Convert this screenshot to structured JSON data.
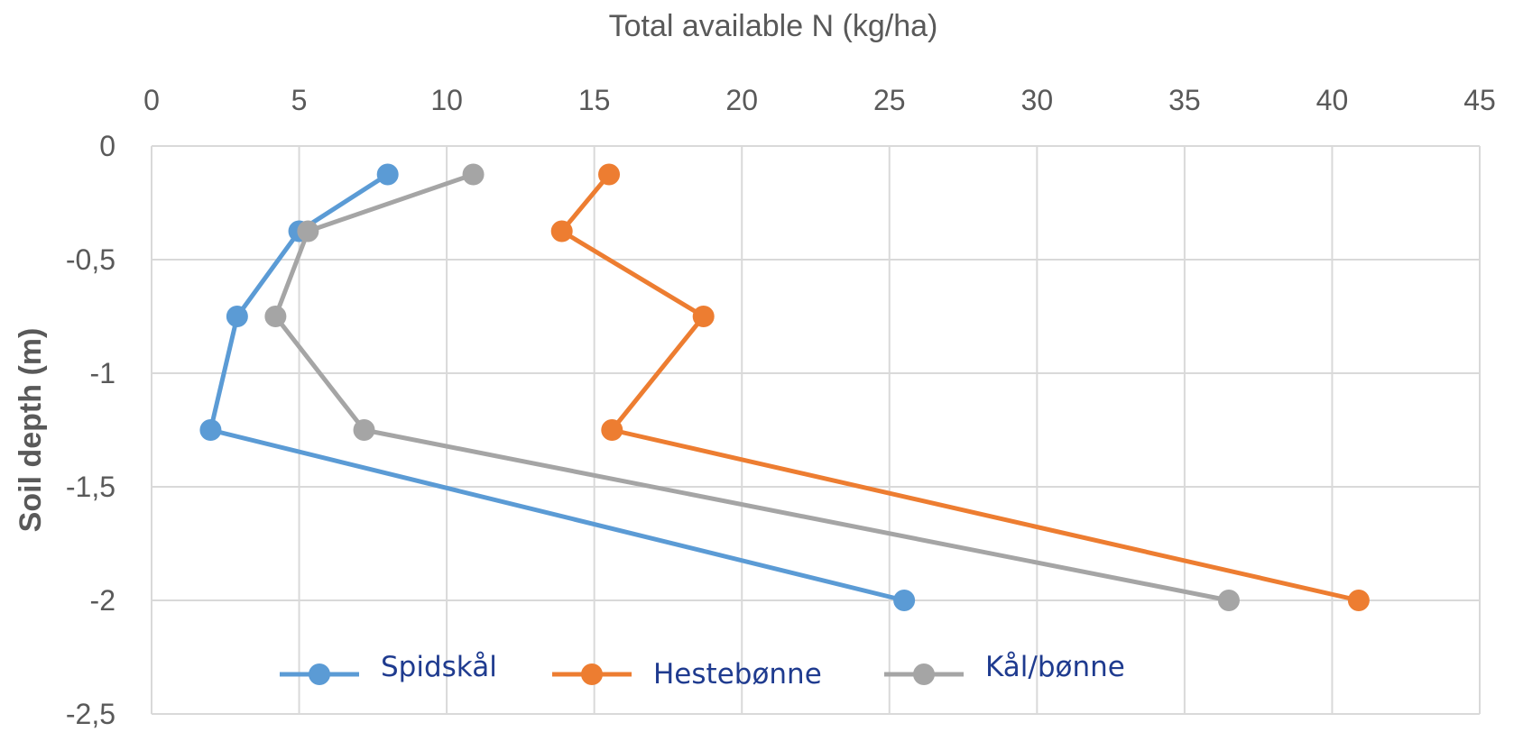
{
  "chart_data": {
    "type": "line",
    "title": "",
    "xlabel": "Total available N (kg/ha)",
    "ylabel": "Soil depth (m)",
    "xlim": [
      0,
      45
    ],
    "ylim": [
      -2.5,
      0
    ],
    "x_ticks": [
      0,
      5,
      10,
      15,
      20,
      25,
      30,
      35,
      40,
      45
    ],
    "x_tick_labels": [
      "0",
      "5",
      "10",
      "15",
      "20",
      "25",
      "30",
      "35",
      "40",
      "45"
    ],
    "y_ticks": [
      0,
      -0.5,
      -1,
      -1.5,
      -2,
      -2.5
    ],
    "y_tick_labels": [
      "0",
      "-0,5",
      "-1",
      "-1,5",
      "-2",
      "-2,5"
    ],
    "x_axis_position": "top",
    "grid": true,
    "legend_position": "bottom-inside",
    "series": [
      {
        "name": "Spidskål",
        "color": "#5b9bd5",
        "points": [
          {
            "x": 8.0,
            "y": -0.125
          },
          {
            "x": 5.0,
            "y": -0.375
          },
          {
            "x": 2.9,
            "y": -0.75
          },
          {
            "x": 2.0,
            "y": -1.25
          },
          {
            "x": 25.5,
            "y": -2.0
          }
        ]
      },
      {
        "name": "Hestebønne",
        "color": "#ed7d31",
        "points": [
          {
            "x": 15.5,
            "y": -0.125
          },
          {
            "x": 13.9,
            "y": -0.375
          },
          {
            "x": 18.7,
            "y": -0.75
          },
          {
            "x": 15.6,
            "y": -1.25
          },
          {
            "x": 40.9,
            "y": -2.0
          }
        ]
      },
      {
        "name": "Kål/bønne",
        "color": "#a5a5a5",
        "points": [
          {
            "x": 10.9,
            "y": -0.125
          },
          {
            "x": 5.3,
            "y": -0.375
          },
          {
            "x": 4.2,
            "y": -0.75
          },
          {
            "x": 7.2,
            "y": -1.25
          },
          {
            "x": 36.5,
            "y": -2.0
          }
        ]
      }
    ]
  }
}
